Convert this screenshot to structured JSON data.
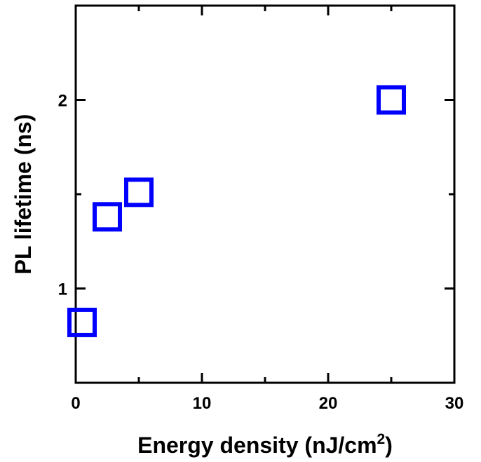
{
  "chart_data": {
    "type": "scatter",
    "xlabel": "Energy density (nJ/cm",
    "xlabel_superscript": "2",
    "xlabel_suffix": ")",
    "ylabel": "PL lifetime (ns)",
    "xlim": [
      0,
      30
    ],
    "ylim": [
      0.5,
      2.5
    ],
    "x_ticks": [
      0,
      10,
      20,
      30
    ],
    "x_tick_labels": [
      "0",
      "10",
      "20",
      "30"
    ],
    "y_ticks": [
      1,
      2
    ],
    "y_tick_labels": [
      "1",
      "2"
    ],
    "grid": false,
    "marker": "open-square",
    "series": [
      {
        "color": "#0000ff",
        "points": [
          {
            "x": 0.5,
            "y": 0.82
          },
          {
            "x": 2.5,
            "y": 1.38
          },
          {
            "x": 5.0,
            "y": 1.51
          },
          {
            "x": 25.0,
            "y": 2.0
          }
        ]
      }
    ]
  }
}
